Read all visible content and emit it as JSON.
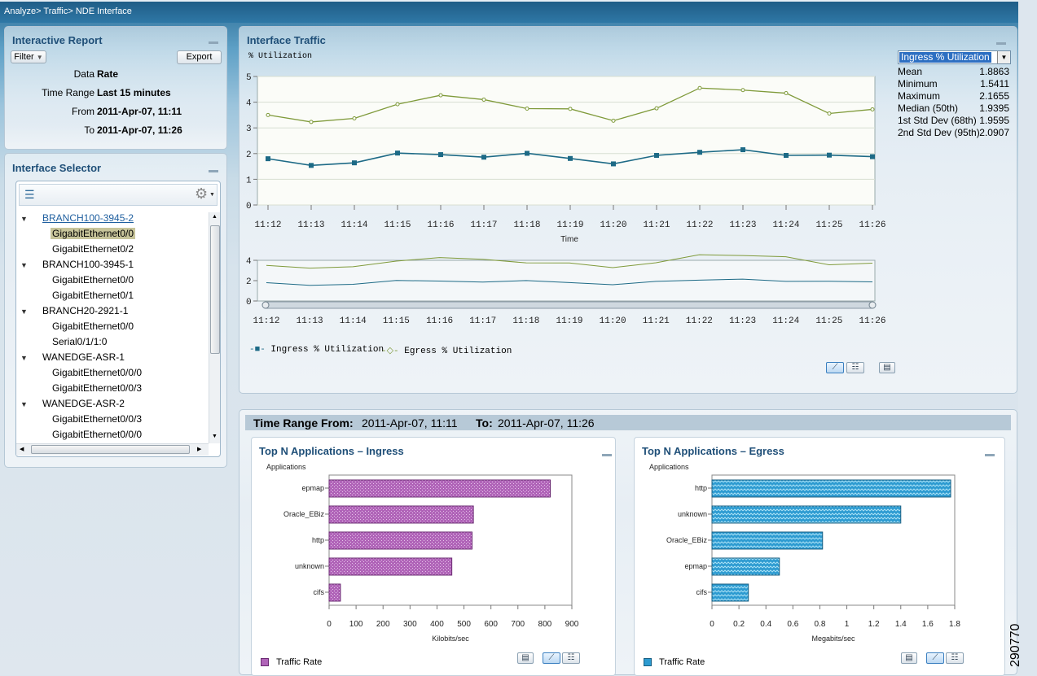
{
  "breadcrumb": "Analyze> Traffic> NDE Interface",
  "report": {
    "title": "Interactive Report",
    "filter_label": "Filter",
    "export_label": "Export",
    "data_label": "Data",
    "data_value": "Rate",
    "range_label": "Time Range",
    "range_value": "Last 15 minutes",
    "from_label": "From",
    "from_value": "2011-Apr-07, 11:11",
    "to_label": "To",
    "to_value": "2011-Apr-07, 11:26"
  },
  "selector": {
    "title": "Interface Selector",
    "items": [
      {
        "label": "BRANCH100-3945-2",
        "level": 0
      },
      {
        "label": "GigabitEthernet0/0",
        "level": 1,
        "selected": true
      },
      {
        "label": "GigabitEthernet0/2",
        "level": 1
      },
      {
        "label": "BRANCH100-3945-1",
        "level": 0
      },
      {
        "label": "GigabitEthernet0/0",
        "level": 1
      },
      {
        "label": "GigabitEthernet0/1",
        "level": 1
      },
      {
        "label": "BRANCH20-2921-1",
        "level": 0
      },
      {
        "label": "GigabitEthernet0/0",
        "level": 1
      },
      {
        "label": "Serial0/1/1:0",
        "level": 1
      },
      {
        "label": "WANEDGE-ASR-1",
        "level": 0
      },
      {
        "label": "GigabitEthernet0/0/0",
        "level": 1
      },
      {
        "label": "GigabitEthernet0/0/3",
        "level": 1
      },
      {
        "label": "WANEDGE-ASR-2",
        "level": 0
      },
      {
        "label": "GigabitEthernet0/0/3",
        "level": 1
      },
      {
        "label": "GigabitEthernet0/0/0",
        "level": 1
      }
    ]
  },
  "traffic": {
    "title": "Interface Traffic",
    "dropdown": "Ingress % Utilization",
    "stats": [
      {
        "label": "Mean",
        "value": "1.8863"
      },
      {
        "label": "Minimum",
        "value": "1.5411"
      },
      {
        "label": "Maximum",
        "value": "2.1655"
      },
      {
        "label": "Median (50th)",
        "value": "1.9395"
      },
      {
        "label": "1st Std Dev (68th)",
        "value": "1.9595"
      },
      {
        "label": "2nd Std Dev (95th)",
        "value": "2.0907"
      }
    ]
  },
  "bottom": {
    "range_from_label": "Time Range From:",
    "range_from_value": "2011-Apr-07, 11:11",
    "range_to_label": "To:",
    "range_to_value": "2011-Apr-07, 11:26",
    "legend_label": "Traffic Rate"
  },
  "figure_id": "290770",
  "chart_data": [
    {
      "type": "line",
      "title": "Interface Traffic",
      "ylabel": "% Utilization",
      "xlabel": "Time",
      "ylim": [
        0,
        5
      ],
      "yticks": [
        0,
        1,
        2,
        3,
        4,
        5
      ],
      "grid": true,
      "legend_placement": "bottom-left",
      "x": [
        "11:12",
        "11:13",
        "11:14",
        "11:15",
        "11:16",
        "11:17",
        "11:18",
        "11:19",
        "11:20",
        "11:21",
        "11:22",
        "11:23",
        "11:24",
        "11:25",
        "11:26"
      ],
      "series": [
        {
          "name": "Ingress % Utilization",
          "color": "#1d6a86",
          "values": [
            1.8,
            1.54,
            1.64,
            2.02,
            1.96,
            1.86,
            2.01,
            1.81,
            1.6,
            1.93,
            2.05,
            2.15,
            1.93,
            1.94,
            1.88
          ]
        },
        {
          "name": "Egress % Utilization",
          "color": "#7f9a3a",
          "values": [
            3.5,
            3.23,
            3.37,
            3.92,
            4.27,
            4.1,
            3.75,
            3.74,
            3.28,
            3.76,
            4.55,
            4.47,
            4.35,
            3.56,
            3.72
          ]
        }
      ],
      "overview_ylim": [
        0,
        4
      ],
      "overview_yticks": [
        0,
        2,
        4
      ]
    },
    {
      "type": "bar",
      "title": "Top N Applications – Ingress",
      "ylabel": "Applications",
      "xlabel": "Kilobits/sec",
      "xlim": [
        0,
        900
      ],
      "xticks": [
        0,
        100,
        200,
        300,
        400,
        500,
        600,
        700,
        800,
        900
      ],
      "categories": [
        "epmap",
        "Oracle_EBiz",
        "http",
        "unknown",
        "cifs"
      ],
      "values": [
        820,
        535,
        530,
        455,
        42
      ],
      "color": "#b064b8",
      "legend": "Traffic Rate"
    },
    {
      "type": "bar",
      "title": "Top N Applications – Egress",
      "ylabel": "Applications",
      "xlabel": "Megabits/sec",
      "xlim": [
        0,
        1.8
      ],
      "xticks": [
        0,
        0.2,
        0.4,
        0.6,
        0.8,
        1,
        1.2,
        1.4,
        1.6,
        1.8
      ],
      "categories": [
        "http",
        "unknown",
        "Oracle_EBiz",
        "epmap",
        "cifs"
      ],
      "values": [
        1.77,
        1.4,
        0.82,
        0.5,
        0.27
      ],
      "color": "#2d9bd1",
      "legend": "Traffic Rate"
    }
  ]
}
